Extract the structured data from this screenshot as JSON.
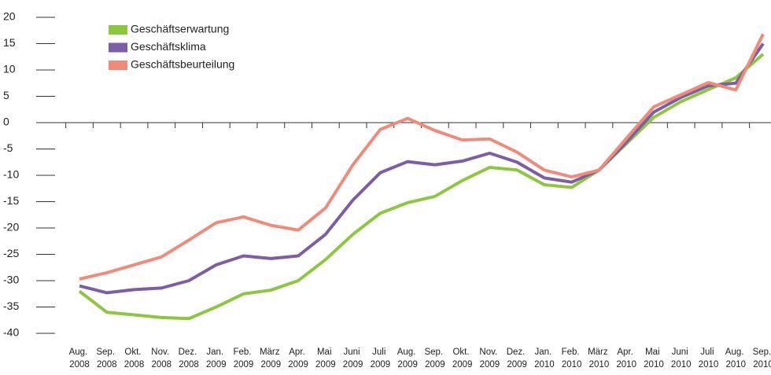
{
  "chart_data": {
    "type": "line",
    "categories": [
      "Aug. 2008",
      "Sep. 2008",
      "Okt. 2008",
      "Nov. 2008",
      "Dez. 2008",
      "Jan. 2009",
      "Feb. 2009",
      "März 2009",
      "Apr. 2009",
      "Mai 2009",
      "Juni 2009",
      "Juli 2009",
      "Aug. 2009",
      "Sep. 2009",
      "Okt. 2009",
      "Nov. 2009",
      "Dez. 2009",
      "Jan. 2010",
      "Feb. 2010",
      "März 2010",
      "Apr. 2010",
      "Mai 2010",
      "Juni 2010",
      "Juli 2010",
      "Aug. 2010",
      "Sep. 2010"
    ],
    "series": [
      {
        "name": "Geschäftserwartung",
        "color": "#8dc63f",
        "values": [
          -32,
          -36,
          -36.5,
          -37,
          -37.2,
          -35,
          -32.5,
          -31.8,
          -30,
          -26,
          -21.2,
          -17.2,
          -15.2,
          -14,
          -11,
          -8.5,
          -9,
          -11.8,
          -12.3,
          -9,
          -4,
          1,
          4,
          6.3,
          8.5,
          13
        ]
      },
      {
        "name": "Geschäftsklima",
        "color": "#7b5ea7",
        "values": [
          -31,
          -32.3,
          -31.7,
          -31.4,
          -30,
          -27,
          -25.3,
          -25.8,
          -25.3,
          -21.2,
          -14.7,
          -9.5,
          -7.4,
          -8,
          -7.3,
          -5.8,
          -7.5,
          -10.5,
          -11.3,
          -9,
          -3.7,
          2,
          4.8,
          7,
          7.5,
          15
        ]
      },
      {
        "name": "Geschäftsbeurteilung",
        "color": "#f08a7a",
        "values": [
          -29.7,
          -28.5,
          -27,
          -25.5,
          -22.3,
          -19,
          -17.9,
          -19.5,
          -20.4,
          -16.2,
          -8,
          -1.3,
          0.8,
          -1.5,
          -3.3,
          -3.1,
          -5.6,
          -9,
          -10.3,
          -9,
          -3,
          3,
          5.3,
          7.6,
          6.2,
          16.8
        ]
      }
    ],
    "ylim": [
      -40,
      20
    ],
    "yticks": [
      20,
      15,
      10,
      5,
      0,
      -5,
      -10,
      -15,
      -20,
      -25,
      -30,
      -35,
      -40
    ]
  }
}
